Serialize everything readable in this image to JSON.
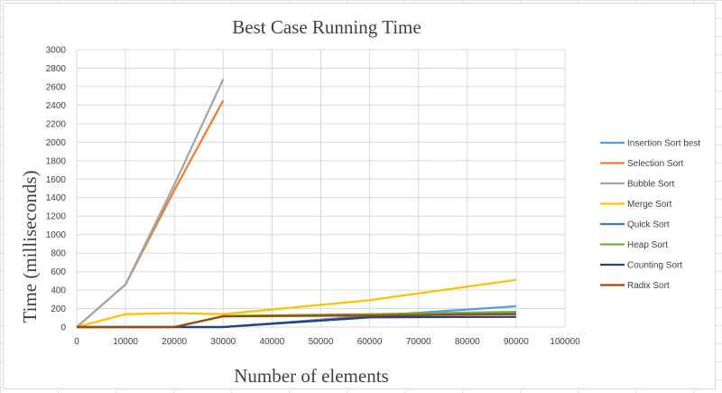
{
  "chart_data": {
    "type": "line",
    "title": "Best  Case Running Time",
    "xlabel": "Number of elements",
    "ylabel": "Time (milliseconds)",
    "xlim": [
      0,
      100000
    ],
    "ylim": [
      0,
      3000
    ],
    "xticks": [
      0,
      10000,
      20000,
      30000,
      40000,
      50000,
      60000,
      70000,
      80000,
      90000,
      100000
    ],
    "yticks": [
      0,
      200,
      400,
      600,
      800,
      1000,
      1200,
      1400,
      1600,
      1800,
      2000,
      2200,
      2400,
      2600,
      2800,
      3000
    ],
    "grid": true,
    "legend_position": "right",
    "series": [
      {
        "name": "Insertion Sort best",
        "color": "#5b9bd5",
        "x": [
          0,
          10000,
          20000,
          30000,
          60000,
          90000
        ],
        "y": [
          0,
          0,
          0,
          0,
          120,
          225
        ]
      },
      {
        "name": "Selection Sort",
        "color": "#ed7d31",
        "x": [
          0,
          10000,
          20000,
          30000
        ],
        "y": [
          0,
          460,
          1480,
          2450
        ]
      },
      {
        "name": "Bubble Sort",
        "color": "#a5a5a5",
        "x": [
          0,
          10000,
          20000,
          30000
        ],
        "y": [
          0,
          460,
          1540,
          2680
        ]
      },
      {
        "name": "Merge Sort",
        "color": "#ffc000",
        "x": [
          0,
          10000,
          20000,
          30000,
          60000,
          90000
        ],
        "y": [
          0,
          140,
          150,
          140,
          290,
          510
        ]
      },
      {
        "name": "Quick Sort",
        "color": "#4472c4",
        "x": [
          0,
          10000,
          20000,
          30000,
          60000,
          90000
        ],
        "y": [
          0,
          0,
          0,
          0,
          110,
          160
        ]
      },
      {
        "name": "Heap Sort",
        "color": "#70ad47",
        "x": [
          0,
          10000,
          20000,
          30000,
          60000,
          90000
        ],
        "y": [
          0,
          0,
          0,
          120,
          140,
          165
        ]
      },
      {
        "name": "Counting Sort",
        "color": "#264478",
        "x": [
          0,
          10000,
          20000,
          30000,
          60000,
          90000
        ],
        "y": [
          0,
          0,
          0,
          0,
          105,
          110
        ]
      },
      {
        "name": "Radix Sort",
        "color": "#9e480e",
        "x": [
          0,
          10000,
          20000,
          30000,
          60000,
          90000
        ],
        "y": [
          0,
          0,
          0,
          115,
          125,
          140
        ]
      }
    ]
  }
}
